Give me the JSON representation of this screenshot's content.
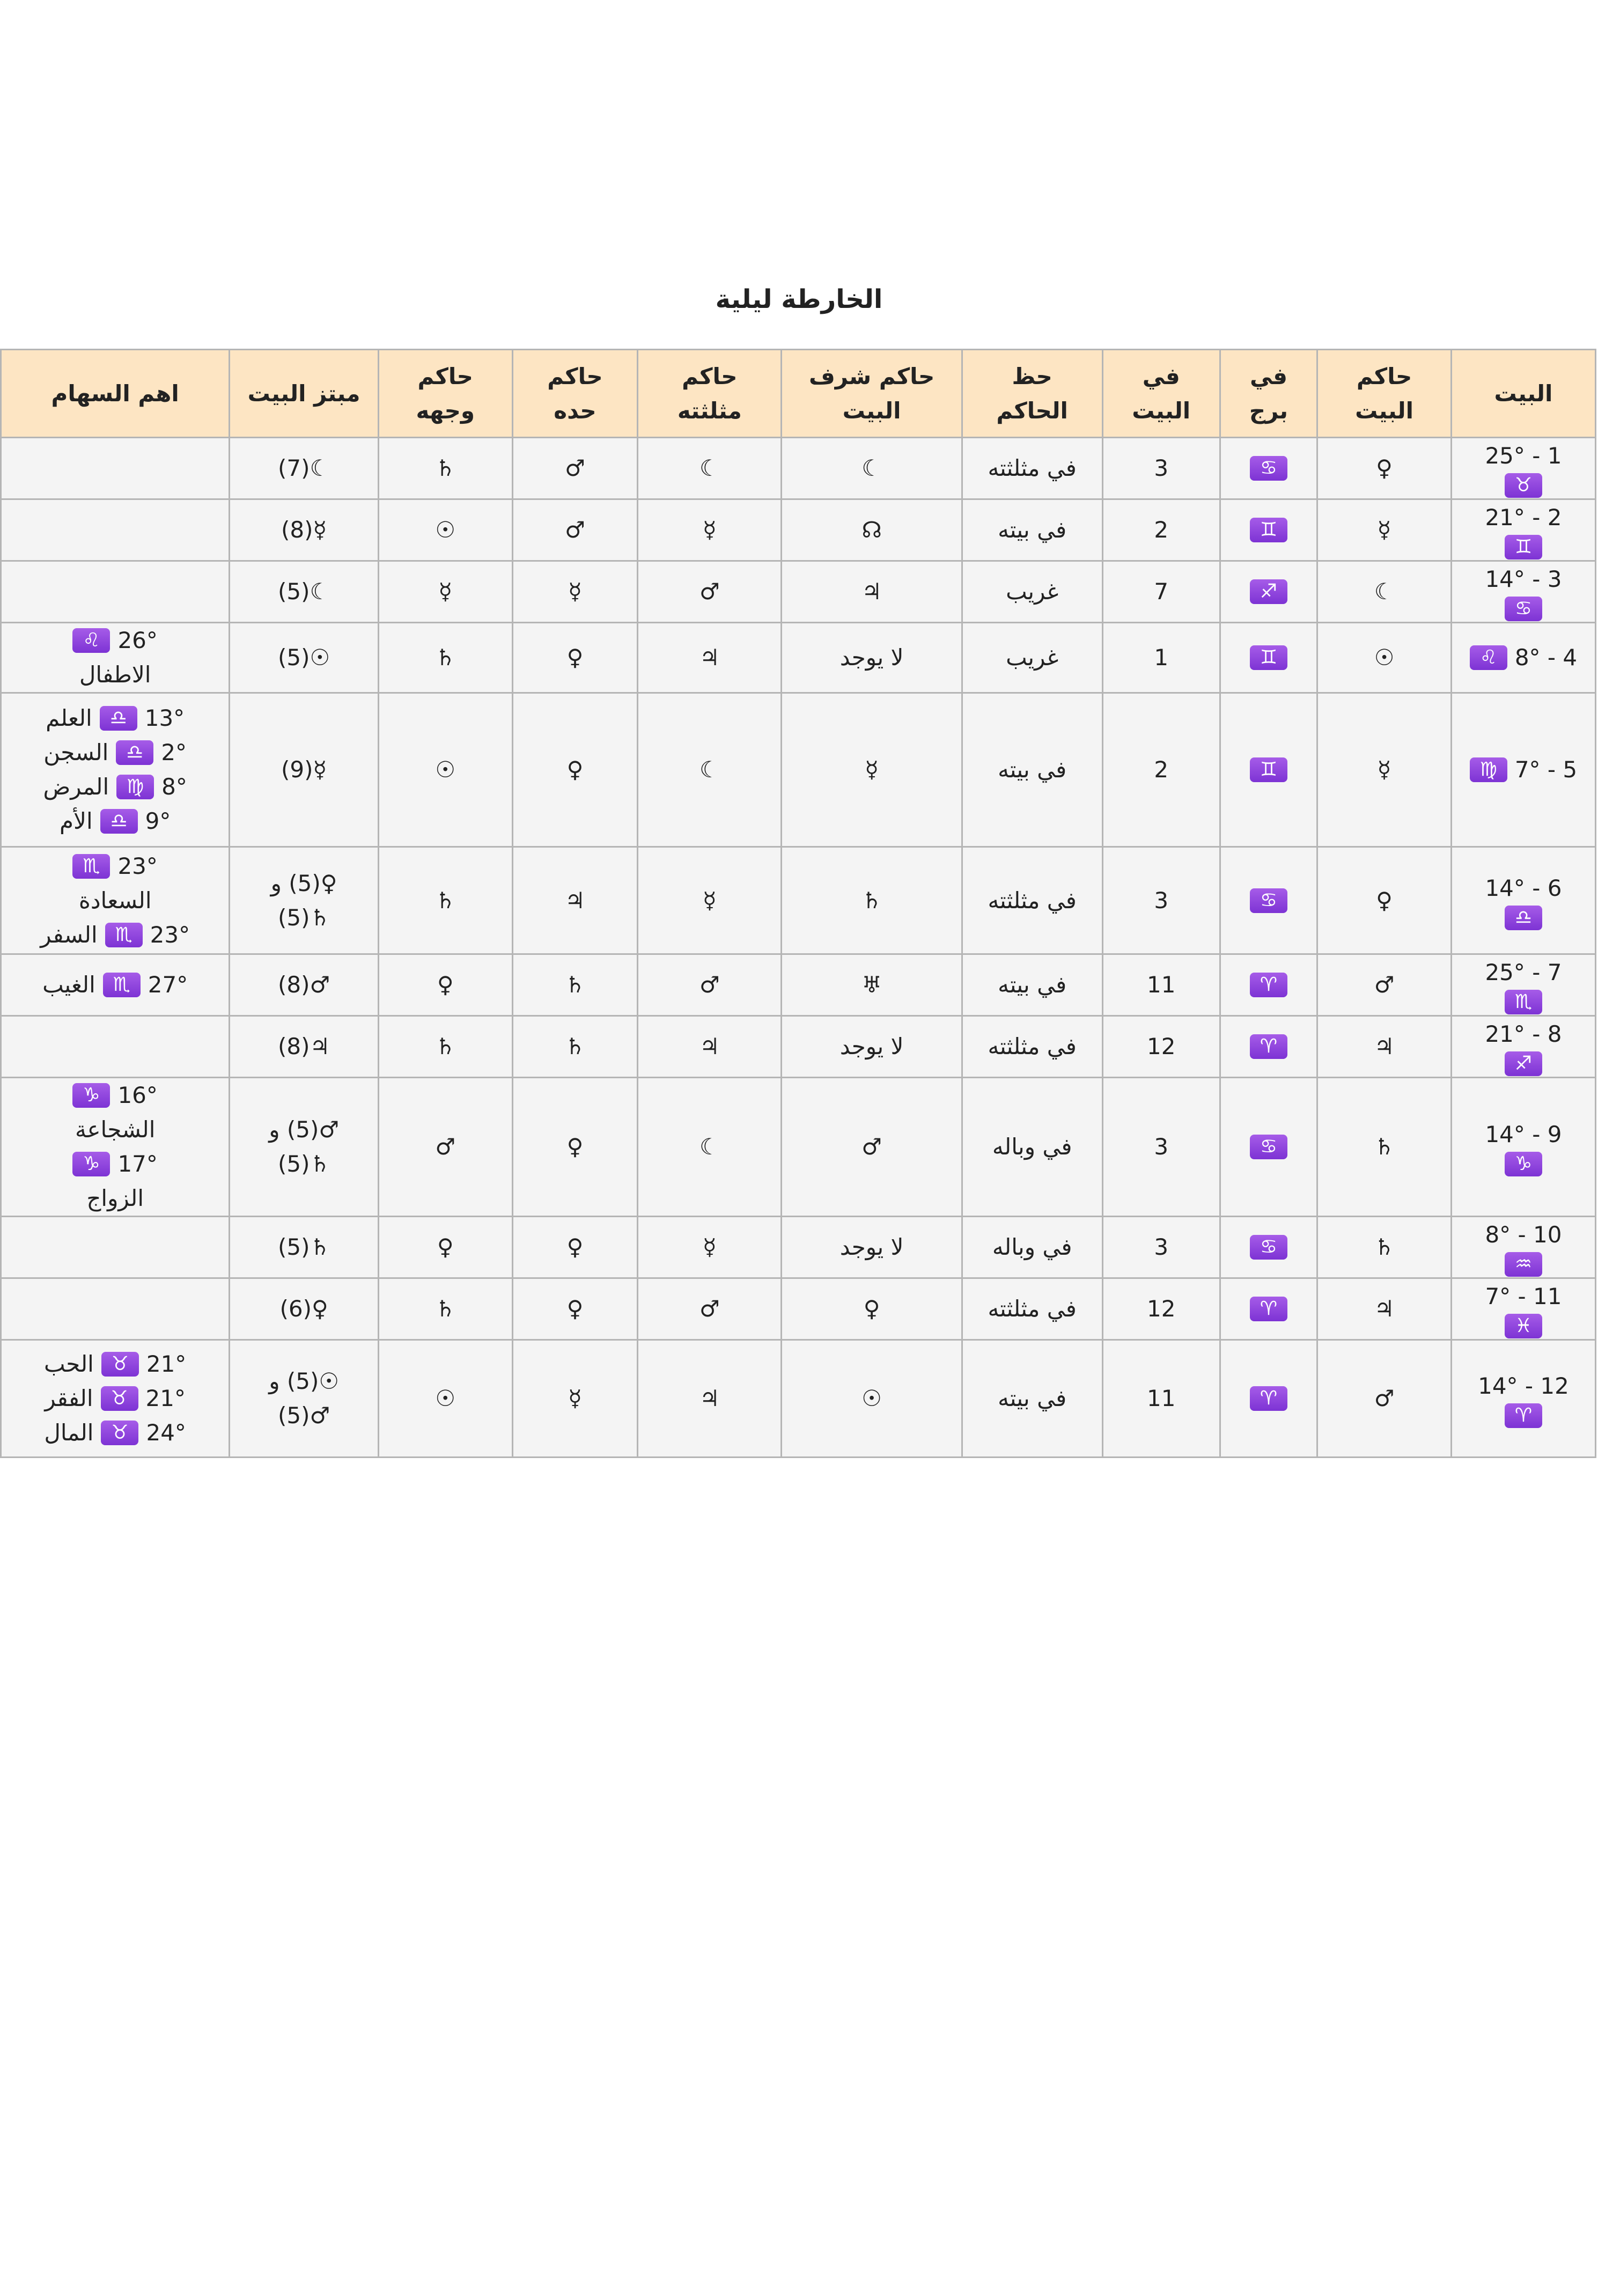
{
  "title": "الخارطة ليلية",
  "table": {
    "headers": [
      [
        "البيت"
      ],
      [
        "حاكم",
        "البيت"
      ],
      [
        "في",
        "برج"
      ],
      [
        "في",
        "البيت"
      ],
      [
        "حظ",
        "الحاكم"
      ],
      [
        "حاكم شرف",
        "البيت"
      ],
      [
        "حاكم",
        "مثلثته"
      ],
      [
        "حاكم",
        "حده"
      ],
      [
        "حاكم",
        "وجهه"
      ],
      [
        "مبتز البيت"
      ],
      [
        "اهم السهام"
      ]
    ],
    "rows": [
      [
        [
          [
            "1 - 25°"
          ],
          [
            {
              "sign": "♉"
            }
          ]
        ],
        "♀",
        [
          [
            {
              "sign": "♋"
            }
          ]
        ],
        "3",
        "في مثلثته",
        "☾",
        "☾",
        "♂",
        "♄",
        "☾(7)",
        null
      ],
      [
        [
          [
            "2 - 21°"
          ],
          [
            {
              "sign": "♊"
            }
          ]
        ],
        "☿",
        [
          [
            {
              "sign": "♊"
            }
          ]
        ],
        "2",
        "في بيته",
        "☊",
        "☿",
        "♂",
        "☉",
        "☿(8)",
        null
      ],
      [
        [
          [
            "3 - 14°"
          ],
          [
            {
              "sign": "♋"
            }
          ]
        ],
        "☾",
        [
          [
            {
              "sign": "♐"
            }
          ]
        ],
        "7",
        "غريب",
        "♃",
        "♂",
        "☿",
        "☿",
        "☾(5)",
        null
      ],
      [
        [
          [
            "4 - 8°",
            {
              "sign": "♌"
            }
          ]
        ],
        "☉",
        [
          [
            {
              "sign": "♊"
            }
          ]
        ],
        "1",
        "غريب",
        "لا يوجد",
        "♃",
        "♀",
        "♄",
        "☉(5)",
        [
          [
            "26°",
            {
              "sign": "♌"
            }
          ],
          [
            "الاطفال"
          ]
        ]
      ],
      [
        [
          [
            "5 - 7°",
            {
              "sign": "♍"
            }
          ]
        ],
        "☿",
        [
          [
            {
              "sign": "♊"
            }
          ]
        ],
        "2",
        "في بيته",
        "☿",
        "☾",
        "♀",
        "☉",
        "☿(9)",
        [
          [
            "13°",
            {
              "sign": "♎"
            },
            "العلم"
          ],
          [
            "2°",
            {
              "sign": "♎"
            },
            "السجن"
          ],
          [
            "8°",
            {
              "sign": "♍"
            },
            "المرض"
          ],
          [
            "9°",
            {
              "sign": "♎"
            },
            "الأم"
          ]
        ]
      ],
      [
        [
          [
            "6 - 14°"
          ],
          [
            {
              "sign": "♎"
            }
          ]
        ],
        "♀",
        [
          [
            {
              "sign": "♋"
            }
          ]
        ],
        "3",
        "في مثلثته",
        "♄",
        "☿",
        "♃",
        "♄",
        [
          [
            "♀(5) و"
          ],
          [
            "♄(5)"
          ]
        ],
        [
          [
            "23°",
            {
              "sign": "♏"
            }
          ],
          [
            "السعادة"
          ],
          [
            "23°",
            {
              "sign": "♏"
            },
            "السفر"
          ]
        ]
      ],
      [
        [
          [
            "7 - 25°"
          ],
          [
            {
              "sign": "♏"
            }
          ]
        ],
        "♂",
        [
          [
            {
              "sign": "♈"
            }
          ]
        ],
        "11",
        "في بيته",
        "♅",
        "♂",
        "♄",
        "♀",
        "♂(8)",
        [
          [
            "27°",
            {
              "sign": "♏"
            },
            "الغيب"
          ]
        ]
      ],
      [
        [
          [
            "8 - 21°"
          ],
          [
            {
              "sign": "♐"
            }
          ]
        ],
        "♃",
        [
          [
            {
              "sign": "♈"
            }
          ]
        ],
        "12",
        "في مثلثته",
        "لا يوجد",
        "♃",
        "♄",
        "♄",
        "♃(8)",
        null
      ],
      [
        [
          [
            "9 - 14°"
          ],
          [
            {
              "sign": "♑"
            }
          ]
        ],
        "♄",
        [
          [
            {
              "sign": "♋"
            }
          ]
        ],
        "3",
        "في وباله",
        "♂",
        "☾",
        "♀",
        "♂",
        [
          [
            "♂(5) و"
          ],
          [
            "♄(5)"
          ]
        ],
        [
          [
            "16°",
            {
              "sign": "♑"
            }
          ],
          [
            "الشجاعة"
          ],
          [
            "17°",
            {
              "sign": "♑"
            }
          ],
          [
            "الزواج"
          ]
        ]
      ],
      [
        [
          [
            "10 - 8°"
          ],
          [
            {
              "sign": "♒"
            }
          ]
        ],
        "♄",
        [
          [
            {
              "sign": "♋"
            }
          ]
        ],
        "3",
        "في وباله",
        "لا يوجد",
        "☿",
        "♀",
        "♀",
        "♄(5)",
        null
      ],
      [
        [
          [
            "11 - 7°"
          ],
          [
            {
              "sign": "♓"
            }
          ]
        ],
        "♃",
        [
          [
            {
              "sign": "♈"
            }
          ]
        ],
        "12",
        "في مثلثته",
        "♀",
        "♂",
        "♀",
        "♄",
        "♀(6)",
        null
      ],
      [
        [
          [
            "12 - 14°"
          ],
          [
            {
              "sign": "♈"
            }
          ]
        ],
        "♂",
        [
          [
            {
              "sign": "♈"
            }
          ]
        ],
        "11",
        "في بيته",
        "☉",
        "♃",
        "☿",
        "☉",
        [
          [
            "☉(5) و"
          ],
          [
            "♂(5)"
          ]
        ],
        [
          [
            "21°",
            {
              "sign": "♉"
            },
            "الحب"
          ],
          [
            "21°",
            {
              "sign": "♉"
            },
            "الفقر"
          ],
          [
            "24°",
            {
              "sign": "♉"
            },
            "المال"
          ]
        ]
      ]
    ]
  }
}
